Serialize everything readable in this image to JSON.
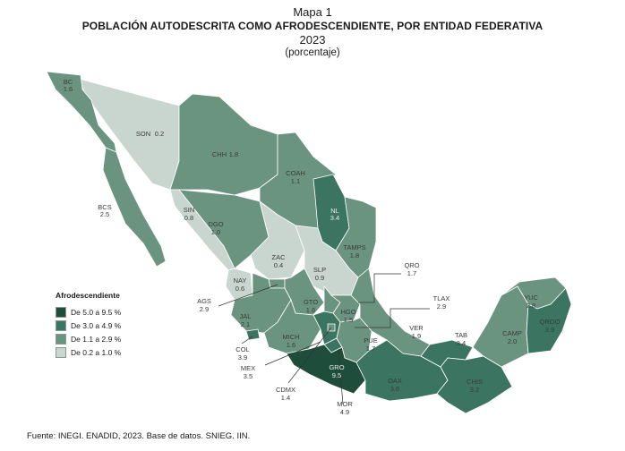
{
  "header": {
    "map_number": "Mapa 1",
    "title": "POBLACIÓN AUTODESCRITA COMO AFRODESCENDIENTE, POR ENTIDAD FEDERATIVA",
    "year": "2023",
    "unit": "(porcentaje)"
  },
  "legend": {
    "title": "Afrodescendiente",
    "items": [
      {
        "label": "De 5.0 a 9.5 %",
        "color": "#1f4d3c"
      },
      {
        "label": "De 3.0 a 4.9 %",
        "color": "#3b7561"
      },
      {
        "label": "De 1.1 a 2.9 %",
        "color": "#6b9480"
      },
      {
        "label": "De 0.2 a 1.0 %",
        "color": "#c9d6d0"
      }
    ]
  },
  "states": [
    {
      "abbr": "BC",
      "value": "1.6"
    },
    {
      "abbr": "BCS",
      "value": "2.5"
    },
    {
      "abbr": "SON",
      "value": "0.2"
    },
    {
      "abbr": "CHH",
      "value": "1.8"
    },
    {
      "abbr": "COAH",
      "value": "1.1"
    },
    {
      "abbr": "NL",
      "value": "3.4"
    },
    {
      "abbr": "SIN",
      "value": "0.8"
    },
    {
      "abbr": "DGO",
      "value": "1.0"
    },
    {
      "abbr": "TAMPS",
      "value": "1.8"
    },
    {
      "abbr": "ZAC",
      "value": "0.4"
    },
    {
      "abbr": "SLP",
      "value": "0.9"
    },
    {
      "abbr": "NAY",
      "value": "0.6"
    },
    {
      "abbr": "AGS",
      "value": "2.9"
    },
    {
      "abbr": "GTO",
      "value": "1.6"
    },
    {
      "abbr": "QRO",
      "value": "1.7"
    },
    {
      "abbr": "HGO",
      "value": "1.5"
    },
    {
      "abbr": "TLAX",
      "value": "2.9"
    },
    {
      "abbr": "JAL",
      "value": "2.1"
    },
    {
      "abbr": "MICH",
      "value": "1.6"
    },
    {
      "abbr": "COL",
      "value": "3.9"
    },
    {
      "abbr": "MEX",
      "value": "3.5"
    },
    {
      "abbr": "CDMX",
      "value": "1.4"
    },
    {
      "abbr": "MOR",
      "value": "4.9"
    },
    {
      "abbr": "GRO",
      "value": "9.5"
    },
    {
      "abbr": "PUE",
      "value": "1.7"
    },
    {
      "abbr": "VER",
      "value": "1.9"
    },
    {
      "abbr": "OAX",
      "value": "3.6"
    },
    {
      "abbr": "TAB",
      "value": "3.4"
    },
    {
      "abbr": "CHIS",
      "value": "3.2"
    },
    {
      "abbr": "CAMP",
      "value": "2.0"
    },
    {
      "abbr": "YUC",
      "value": "2.8"
    },
    {
      "abbr": "QROO",
      "value": "3.9"
    }
  ],
  "source": "Fuente: INEGI. ENADID, 2023. Base de datos. SNIEG. IIN."
}
